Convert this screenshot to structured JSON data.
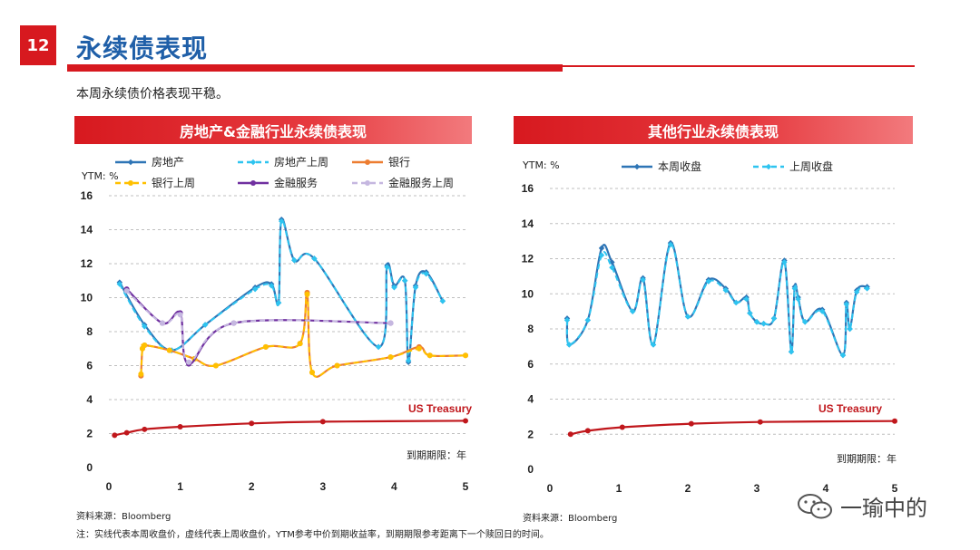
{
  "page": {
    "number": "12",
    "title": "永续债表现",
    "subtitle": "本周永续债价格表现平稳。",
    "source_left": "资料来源：Bloomberg",
    "source_right": "资料来源：Bloomberg",
    "note": "注：实线代表本周收盘价，虚线代表上周收盘价，YTM参考中价到期收益率，到期期限参考距离下一个赎回日的时间。",
    "watermark": "一瑜中的"
  },
  "colors": {
    "accent_red": "#d7191f",
    "title_blue": "#1f5fa8",
    "treasury": "#c0171c",
    "real_estate": "#2e75b6",
    "real_estate_prev": "#2ec4f0",
    "bank": "#ed7d31",
    "bank_prev": "#ffc000",
    "finance": "#7030a0",
    "finance_prev": "#c5b7e0"
  },
  "chart_data": [
    {
      "type": "line",
      "title": "房地产&金融行业永续债表现",
      "ylabel": "YTM:  %",
      "xlabel": "到期期限：年",
      "xlim": [
        0,
        5
      ],
      "ylim": [
        0,
        16
      ],
      "xticks": [
        "0",
        "1",
        "2",
        "3",
        "4",
        "5"
      ],
      "yticks": [
        "0",
        "2",
        "4",
        "6",
        "8",
        "10",
        "12",
        "14",
        "16"
      ],
      "grid": "horizontal-dashed",
      "legend": "top",
      "annotation": "US Treasury",
      "series": [
        {
          "name": "房地产",
          "style": "solid",
          "marker": "diamond",
          "color": "#2e75b6",
          "x": [
            0.15,
            0.5,
            0.88,
            1.35,
            2.05,
            2.28,
            2.38,
            2.42,
            2.6,
            2.88,
            3.78,
            3.9,
            4.0,
            4.15,
            4.2,
            4.3,
            4.45,
            4.68
          ],
          "y": [
            10.9,
            8.4,
            6.9,
            8.4,
            10.6,
            10.8,
            9.7,
            14.6,
            12.2,
            12.3,
            7.1,
            11.9,
            10.7,
            11.0,
            6.2,
            10.7,
            11.5,
            9.8
          ]
        },
        {
          "name": "房地产上周",
          "style": "dashed",
          "marker": "diamond",
          "color": "#2ec4f0",
          "x": [
            0.15,
            0.5,
            0.88,
            1.35,
            2.05,
            2.28,
            2.38,
            2.42,
            2.6,
            2.88,
            3.78,
            3.9,
            4.0,
            4.15,
            4.2,
            4.3,
            4.45,
            4.68
          ],
          "y": [
            10.8,
            8.3,
            6.9,
            8.4,
            10.5,
            10.7,
            9.7,
            14.5,
            12.2,
            12.3,
            7.1,
            11.8,
            10.6,
            11.0,
            6.3,
            10.6,
            11.4,
            9.8
          ]
        },
        {
          "name": "银行",
          "style": "solid",
          "marker": "circle",
          "color": "#ed7d31",
          "x": [
            0.45,
            0.47,
            0.5,
            0.85,
            1.2,
            1.5,
            2.2,
            2.68,
            2.78,
            2.85,
            3.2,
            3.95,
            4.35,
            4.5,
            5.0
          ],
          "y": [
            5.4,
            7.0,
            7.2,
            6.9,
            6.4,
            6.0,
            7.1,
            7.3,
            10.3,
            5.6,
            6.0,
            6.5,
            7.1,
            6.6,
            6.6
          ]
        },
        {
          "name": "银行上周",
          "style": "dashed",
          "marker": "circle",
          "color": "#ffc000",
          "x": [
            0.45,
            0.47,
            0.5,
            0.85,
            1.2,
            1.5,
            2.2,
            2.68,
            2.78,
            2.85,
            3.2,
            3.95,
            4.35,
            4.5,
            5.0
          ],
          "y": [
            5.5,
            7.0,
            7.2,
            6.9,
            6.4,
            6.0,
            7.1,
            7.3,
            10.2,
            5.6,
            6.0,
            6.5,
            7.0,
            6.6,
            6.6
          ]
        },
        {
          "name": "金融服务",
          "style": "solid",
          "marker": "circle",
          "color": "#7030a0",
          "x": [
            0.25,
            0.75,
            1.0,
            1.12,
            1.75,
            3.95
          ],
          "y": [
            10.5,
            8.5,
            9.1,
            6.1,
            8.5,
            8.5
          ]
        },
        {
          "name": "金融服务上周",
          "style": "dashed",
          "marker": "circle",
          "color": "#c5b7e0",
          "x": [
            0.25,
            0.75,
            1.0,
            1.12,
            1.75,
            3.95
          ],
          "y": [
            10.4,
            8.5,
            9.0,
            6.2,
            8.5,
            8.5
          ]
        },
        {
          "name": "US Treasury",
          "style": "solid",
          "marker": "circle",
          "color": "#c0171c",
          "x": [
            0.08,
            0.25,
            0.5,
            1.0,
            2.0,
            3.0,
            5.0
          ],
          "y": [
            1.9,
            2.05,
            2.25,
            2.4,
            2.6,
            2.7,
            2.75
          ]
        }
      ]
    },
    {
      "type": "line",
      "title": "其他行业永续债表现",
      "ylabel": "YTM:  %",
      "xlabel": "到期期限：年",
      "xlim": [
        0,
        5
      ],
      "ylim": [
        0,
        16
      ],
      "xticks": [
        "0",
        "1",
        "2",
        "3",
        "4",
        "5"
      ],
      "yticks": [
        "0",
        "2",
        "4",
        "6",
        "8",
        "10",
        "12",
        "14",
        "16"
      ],
      "grid": "horizontal-dashed",
      "legend": "top",
      "annotation": "US Treasury",
      "series": [
        {
          "name": "本周收盘",
          "style": "solid",
          "marker": "diamond",
          "color": "#2e75b6",
          "x": [
            0.25,
            0.28,
            0.55,
            0.75,
            0.9,
            1.2,
            1.35,
            1.5,
            1.75,
            2.0,
            2.3,
            2.55,
            2.7,
            2.85,
            2.9,
            3.0,
            3.1,
            3.25,
            3.4,
            3.5,
            3.55,
            3.6,
            3.7,
            3.95,
            4.25,
            4.3,
            4.35,
            4.45,
            4.6
          ],
          "y": [
            8.6,
            7.1,
            8.5,
            12.6,
            11.8,
            9.0,
            10.9,
            7.1,
            12.9,
            8.7,
            10.8,
            10.3,
            9.5,
            9.8,
            8.9,
            8.4,
            8.3,
            8.6,
            11.9,
            6.7,
            10.4,
            9.8,
            8.4,
            9.1,
            6.5,
            9.5,
            8.0,
            10.2,
            10.4
          ]
        },
        {
          "name": "上周收盘",
          "style": "dashed",
          "marker": "diamond",
          "color": "#2ec4f0",
          "x": [
            0.25,
            0.28,
            0.55,
            0.75,
            0.9,
            1.2,
            1.35,
            1.5,
            1.75,
            2.0,
            2.3,
            2.55,
            2.7,
            2.85,
            2.9,
            3.0,
            3.1,
            3.25,
            3.4,
            3.5,
            3.55,
            3.6,
            3.7,
            3.95,
            4.25,
            4.3,
            4.35,
            4.45,
            4.6
          ],
          "y": [
            8.5,
            7.1,
            8.5,
            12.2,
            11.5,
            9.0,
            10.8,
            7.1,
            12.8,
            8.7,
            10.7,
            10.2,
            9.5,
            9.7,
            8.9,
            8.4,
            8.3,
            8.6,
            11.8,
            6.7,
            10.3,
            9.7,
            8.4,
            9.0,
            6.5,
            9.4,
            8.0,
            10.1,
            10.3
          ]
        },
        {
          "name": "US Treasury",
          "style": "solid",
          "marker": "circle",
          "color": "#c0171c",
          "x": [
            0.3,
            0.55,
            1.05,
            2.05,
            3.05,
            5.0
          ],
          "y": [
            2.0,
            2.2,
            2.4,
            2.6,
            2.7,
            2.75
          ]
        }
      ]
    }
  ]
}
